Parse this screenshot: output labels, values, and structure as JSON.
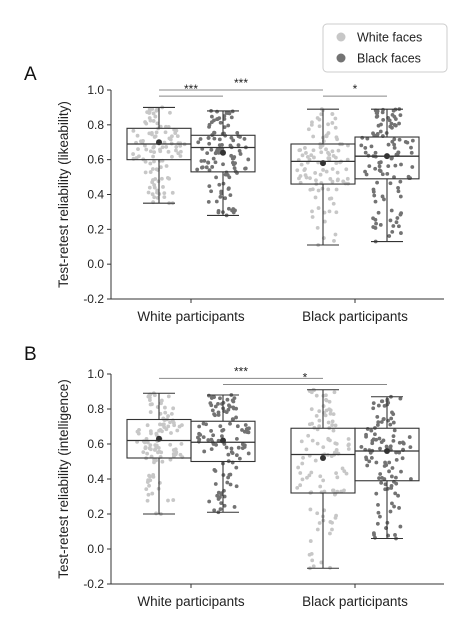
{
  "colors": {
    "white_faces": "#c7c7c7",
    "black_faces": "#737373",
    "box": "#333333",
    "sig": "#888888"
  },
  "legend": {
    "placement": "top-right",
    "items": [
      {
        "label": "White faces",
        "color": "#c7c7c7"
      },
      {
        "label": "Black faces",
        "color": "#737373"
      }
    ]
  },
  "chart_data": [
    {
      "type": "box",
      "panel_label": "A",
      "ylabel": "Test-retest reliability (likeability)",
      "ylim": [
        -0.2,
        1.0
      ],
      "yticks": [
        "-0.2",
        "0.0",
        "0.2",
        "0.4",
        "0.6",
        "0.8",
        "1.0"
      ],
      "categories": [
        "White participants",
        "Black participants"
      ],
      "series": [
        {
          "name": "White faces",
          "boxes": [
            {
              "min": 0.35,
              "q1": 0.6,
              "median": 0.69,
              "q3": 0.78,
              "max": 0.9,
              "mean": 0.7
            },
            {
              "min": 0.11,
              "q1": 0.46,
              "median": 0.59,
              "q3": 0.69,
              "max": 0.89,
              "mean": 0.58
            }
          ]
        },
        {
          "name": "Black faces",
          "boxes": [
            {
              "min": 0.28,
              "q1": 0.53,
              "median": 0.67,
              "q3": 0.74,
              "max": 0.88,
              "mean": 0.64
            },
            {
              "min": 0.13,
              "q1": 0.49,
              "median": 0.62,
              "q3": 0.73,
              "max": 0.89,
              "mean": 0.62
            }
          ]
        }
      ],
      "significance": [
        {
          "from": [
            0,
            0
          ],
          "to": [
            1,
            0
          ],
          "y": 1.0,
          "label": "***"
        },
        {
          "from": [
            0,
            0
          ],
          "to": [
            0,
            1
          ],
          "y": 0.965,
          "label": "***"
        },
        {
          "from": [
            1,
            0
          ],
          "to": [
            1,
            1
          ],
          "y": 0.965,
          "label": "*"
        }
      ]
    },
    {
      "type": "box",
      "panel_label": "B",
      "ylabel": "Test-retest reliability (intelligence)",
      "ylim": [
        -0.2,
        1.0
      ],
      "yticks": [
        "-0.2",
        "0.0",
        "0.2",
        "0.4",
        "0.6",
        "0.8",
        "1.0"
      ],
      "categories": [
        "White participants",
        "Black participants"
      ],
      "series": [
        {
          "name": "White faces",
          "boxes": [
            {
              "min": 0.2,
              "q1": 0.52,
              "median": 0.62,
              "q3": 0.74,
              "max": 0.89,
              "mean": 0.63
            },
            {
              "min": -0.11,
              "q1": 0.32,
              "median": 0.54,
              "q3": 0.69,
              "max": 0.91,
              "mean": 0.52
            }
          ]
        },
        {
          "name": "Black faces",
          "boxes": [
            {
              "min": 0.21,
              "q1": 0.5,
              "median": 0.61,
              "q3": 0.73,
              "max": 0.88,
              "mean": 0.62
            },
            {
              "min": 0.06,
              "q1": 0.39,
              "median": 0.56,
              "q3": 0.69,
              "max": 0.87,
              "mean": 0.56
            }
          ]
        }
      ],
      "significance": [
        {
          "from": [
            0,
            0
          ],
          "to": [
            1,
            0
          ],
          "y": 0.975,
          "label": "***"
        },
        {
          "from": [
            0,
            1
          ],
          "to": [
            1,
            1
          ],
          "y": 0.94,
          "label": "*"
        }
      ]
    }
  ]
}
